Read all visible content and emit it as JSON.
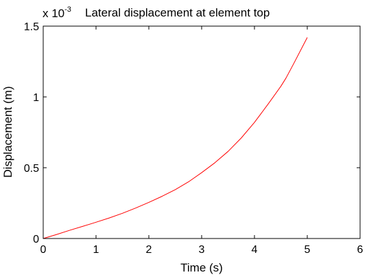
{
  "chart_data": {
    "type": "line",
    "title": "Lateral displacement at element top",
    "xlabel": "Time (s)",
    "ylabel": "Displacement (m)",
    "y_exponent_label": {
      "base": "x 10",
      "exponent": "-3"
    },
    "xlim": [
      0,
      6
    ],
    "ylim": [
      0,
      1.5
    ],
    "x_ticks": [
      0,
      1,
      2,
      3,
      4,
      5,
      6
    ],
    "x_tick_labels": [
      "0",
      "1",
      "2",
      "3",
      "4",
      "5",
      "6"
    ],
    "y_ticks": [
      0,
      0.5,
      1,
      1.5
    ],
    "y_tick_labels": [
      "0",
      "0.5",
      "1",
      "1.5"
    ],
    "grid": false,
    "series": [
      {
        "color": "#ff0000",
        "x": [
          0,
          0.25,
          0.5,
          0.75,
          1.0,
          1.25,
          1.5,
          1.75,
          2.0,
          2.25,
          2.5,
          2.75,
          3.0,
          3.25,
          3.5,
          3.75,
          4.0,
          4.25,
          4.5,
          4.6,
          4.75,
          5.0
        ],
        "y": [
          0.0,
          0.028,
          0.058,
          0.086,
          0.115,
          0.145,
          0.178,
          0.215,
          0.255,
          0.298,
          0.345,
          0.4,
          0.465,
          0.535,
          0.615,
          0.71,
          0.82,
          0.945,
          1.075,
          1.135,
          1.24,
          1.42
        ]
      }
    ]
  }
}
